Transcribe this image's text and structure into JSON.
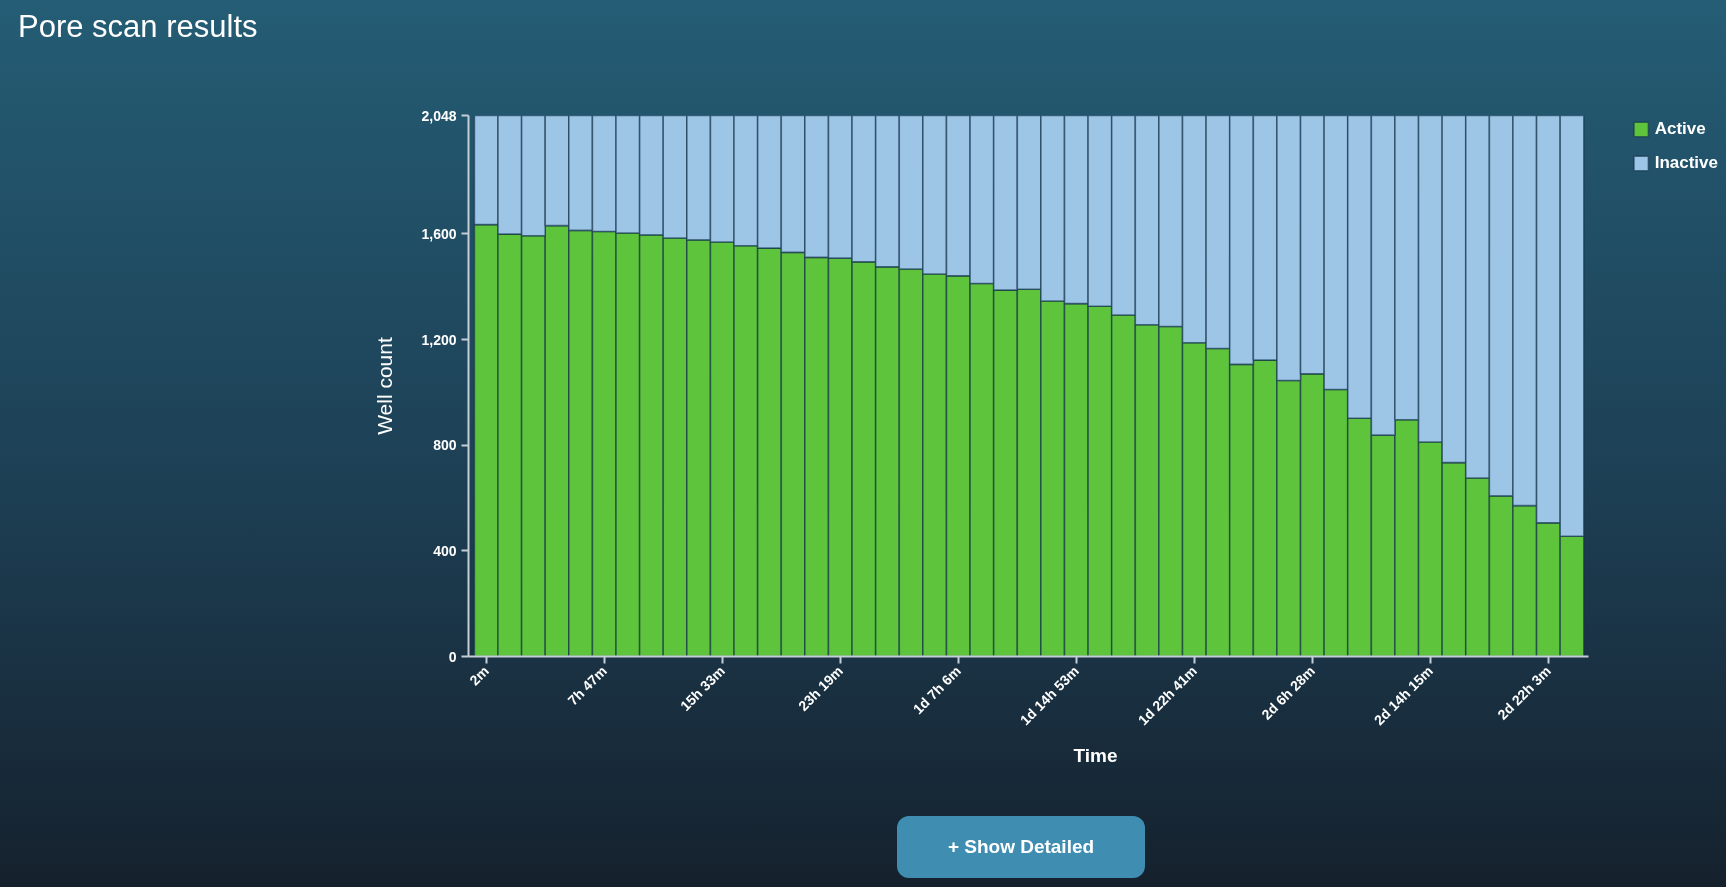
{
  "chart_data": {
    "type": "bar",
    "title": "Pore scan results",
    "xlabel": "Time",
    "ylabel": "Well count",
    "stacked": true,
    "legend": "top right",
    "categories": [
      "2m",
      null,
      null,
      null,
      null,
      "7h 47m",
      null,
      null,
      null,
      null,
      "15h 33m",
      null,
      null,
      null,
      null,
      "23h 19m",
      null,
      null,
      null,
      null,
      "1d 7h 6m",
      null,
      null,
      null,
      null,
      "1d 14h 53m",
      null,
      null,
      null,
      null,
      "1d 22h 41m",
      null,
      null,
      null,
      null,
      "2d 6h 28m",
      null,
      null,
      null,
      null,
      "2d 14h 15m",
      null,
      null,
      null,
      null,
      "2d 22h 3m",
      null
    ],
    "series": [
      {
        "name": "Active",
        "color": "#5ec43c",
        "values": [
          1635,
          1599,
          1593,
          1631,
          1613,
          1609,
          1603,
          1596,
          1584,
          1577,
          1569,
          1555,
          1546,
          1530,
          1511,
          1508,
          1494,
          1475,
          1467,
          1448,
          1441,
          1412,
          1387,
          1390,
          1346,
          1336,
          1326,
          1293,
          1256,
          1249,
          1188,
          1166,
          1106,
          1122,
          1045,
          1070,
          1011,
          902,
          838,
          896,
          812,
          734,
          676,
          608,
          571,
          506,
          455
        ]
      },
      {
        "name": "Inactive",
        "color": "#9cc5e6",
        "values": [
          413,
          449,
          455,
          417,
          435,
          439,
          445,
          452,
          464,
          471,
          479,
          493,
          502,
          518,
          537,
          540,
          554,
          573,
          581,
          600,
          607,
          636,
          661,
          658,
          702,
          712,
          722,
          755,
          792,
          799,
          860,
          882,
          942,
          926,
          1003,
          978,
          1037,
          1146,
          1210,
          1152,
          1236,
          1314,
          1372,
          1440,
          1477,
          1542,
          1593
        ]
      }
    ],
    "ylim": [
      0,
      2048
    ],
    "yticks": [
      0,
      400,
      800,
      {
        "value": 1200,
        "label": "1,200"
      },
      {
        "value": 1600,
        "label": "1,600"
      },
      {
        "value": 2048,
        "label": "2,048"
      }
    ],
    "annotations": [
      "+ Show Detailed"
    ]
  }
}
